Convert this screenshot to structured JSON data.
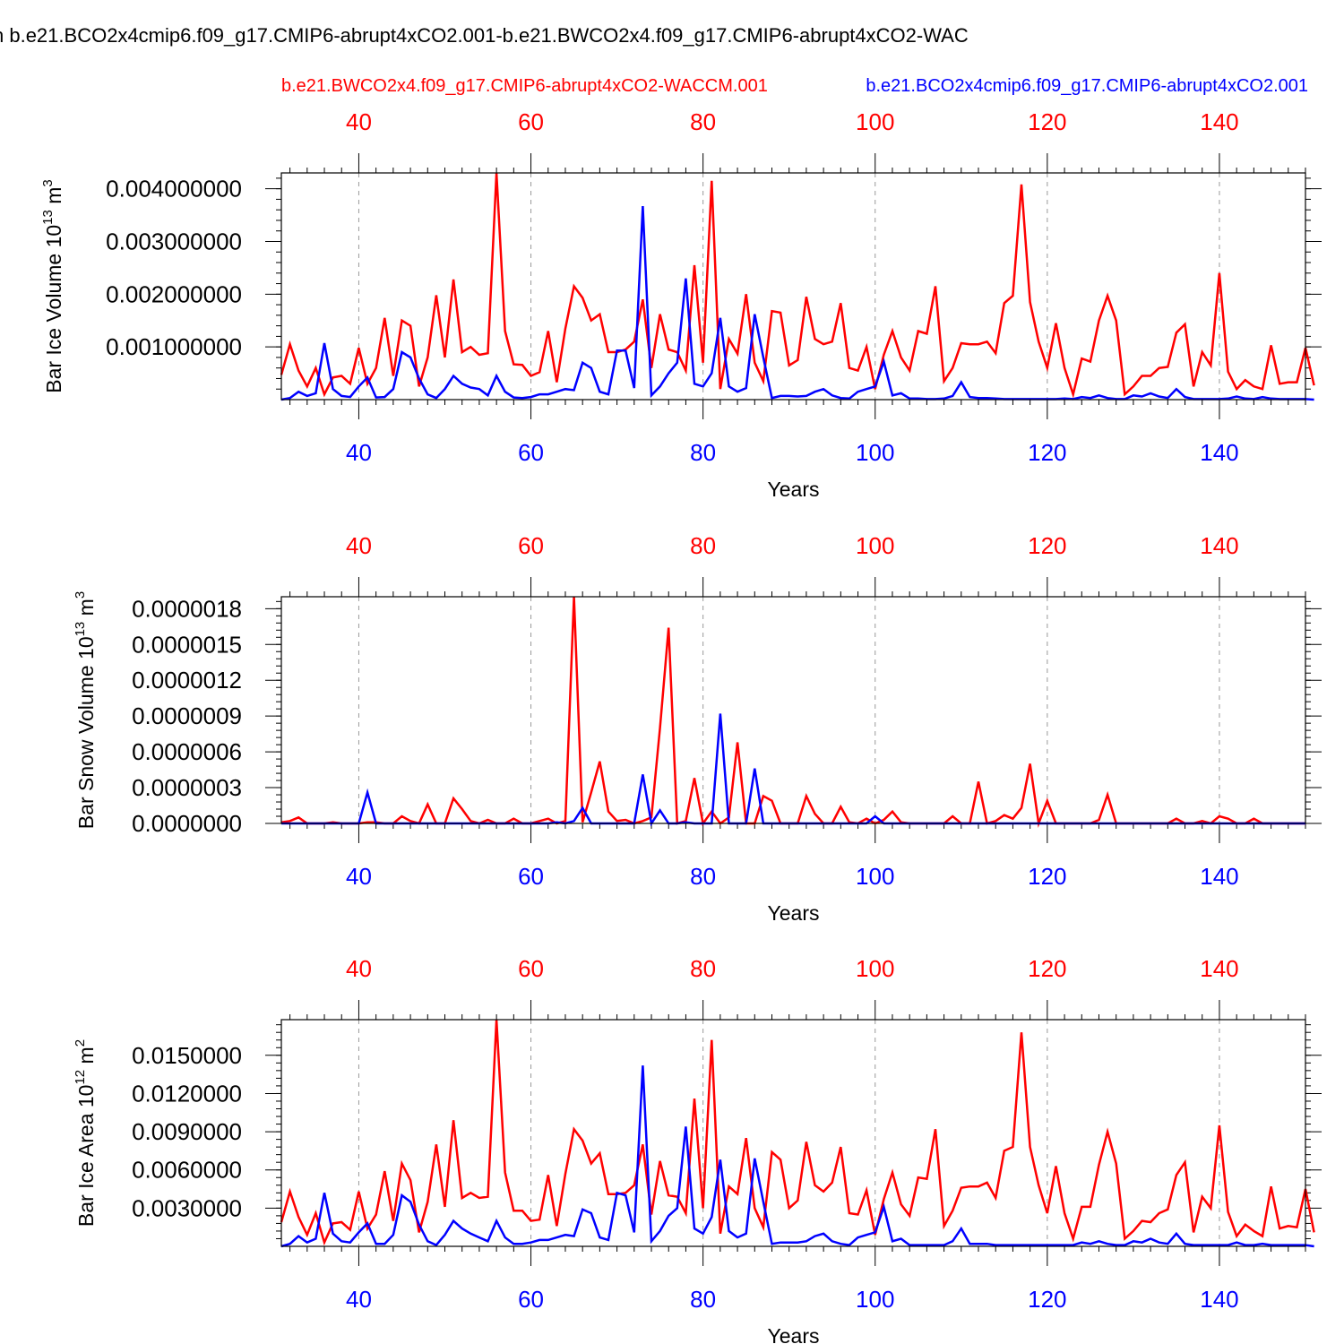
{
  "title": "n b.e21.BCO2x4cmip6.f09_g17.CMIP6-abrupt4xCO2.001-b.e21.BWCO2x4.f09_g17.CMIP6-abrupt4xCO2-WAC",
  "legend": {
    "red": "b.e21.BWCO2x4.f09_g17.CMIP6-abrupt4xCO2-WACCM.001",
    "blue": "b.e21.BCO2x4cmip6.f09_g17.CMIP6-abrupt4xCO2.001"
  },
  "colors": {
    "red": "#ff0000",
    "blue": "#0000ff",
    "axis": "#000000",
    "grid": "#999999"
  },
  "chart_data": [
    {
      "type": "line",
      "id": "ice-volume",
      "ylabel_main": "Bar Ice Volume 10",
      "ylabel_exp": "13",
      "ylabel_unit": " m",
      "ylabel_unit_exp": "3",
      "xlabel": "Years",
      "xlim": [
        31,
        150
      ],
      "ylim": [
        0,
        0.0043
      ],
      "xticks": [
        40,
        60,
        80,
        100,
        120,
        140
      ],
      "xtick_labels": [
        "40",
        "60",
        "80",
        "100",
        "120",
        "140"
      ],
      "yticks": [
        0.001,
        0.002,
        0.003,
        0.004
      ],
      "ytick_labels": [
        "0.001000000",
        "0.002000000",
        "0.003000000",
        "0.004000000"
      ],
      "x_start": 31,
      "series": [
        {
          "name": "b.e21.BWCO2x4.f09_g17.CMIP6-abrupt4xCO2-WACCM.001",
          "color": "red",
          "values": [
            0.00047,
            0.00105,
            0.00055,
            0.00025,
            0.0006,
            0.0001,
            0.00042,
            0.00045,
            0.0003,
            0.00098,
            0.0003,
            0.0006,
            0.00155,
            0.00045,
            0.0015,
            0.0014,
            0.00025,
            0.0008,
            0.00198,
            0.0008,
            0.00228,
            0.0009,
            0.001,
            0.00085,
            0.00088,
            0.0043,
            0.0013,
            0.00067,
            0.00066,
            0.00045,
            0.00052,
            0.0013,
            0.00033,
            0.00135,
            0.00215,
            0.00193,
            0.0015,
            0.00162,
            0.0009,
            0.0009,
            0.00095,
            0.0011,
            0.0019,
            0.0006,
            0.00162,
            0.00095,
            0.0009,
            0.00055,
            0.00255,
            0.0007,
            0.00415,
            0.0002,
            0.00115,
            0.00087,
            0.002,
            0.0007,
            0.00035,
            0.00168,
            0.00165,
            0.00065,
            0.00075,
            0.00195,
            0.00115,
            0.00105,
            0.0011,
            0.00183,
            0.0006,
            0.00055,
            0.001,
            0.0002,
            0.00085,
            0.0013,
            0.0008,
            0.00055,
            0.0013,
            0.00125,
            0.00215,
            0.00035,
            0.0006,
            0.00107,
            0.00105,
            0.00105,
            0.0011,
            0.00088,
            0.00183,
            0.00197,
            0.00408,
            0.00185,
            0.0011,
            0.0006,
            0.00145,
            0.0006,
            0.0001,
            0.00078,
            0.00072,
            0.0015,
            0.00197,
            0.0015,
            0.0001,
            0.00025,
            0.00045,
            0.00045,
            0.0006,
            0.00062,
            0.00127,
            0.00143,
            0.00025,
            0.0009,
            0.00065,
            0.0024,
            0.00053,
            0.0002,
            0.00037,
            0.00025,
            0.0002,
            0.00103,
            0.0003,
            0.00033,
            0.00033,
            0.00098,
            0.00027
          ]
        },
        {
          "name": "b.e21.BCO2x4cmip6.f09_g17.CMIP6-abrupt4xCO2.001",
          "color": "blue",
          "values": [
            0.0,
            3e-05,
            0.00015,
            7e-05,
            0.00012,
            0.00107,
            0.0002,
            7e-05,
            5e-05,
            0.00025,
            0.00042,
            4e-05,
            5e-05,
            0.0002,
            0.0009,
            0.0008,
            0.0004,
            0.0001,
            3e-05,
            0.0002,
            0.00045,
            0.0003,
            0.00023,
            0.0002,
            8e-05,
            0.00045,
            0.00015,
            4e-05,
            3e-05,
            5e-05,
            0.0001,
            0.0001,
            0.00015,
            0.0002,
            0.00018,
            0.0007,
            0.0006,
            0.00015,
            0.0001,
            0.00093,
            0.00093,
            0.00022,
            0.00367,
            8e-05,
            0.00025,
            0.0005,
            0.0007,
            0.0023,
            0.0003,
            0.00025,
            0.0005,
            0.00155,
            0.00025,
            0.00015,
            0.00022,
            0.00162,
            0.0008,
            3e-05,
            7e-05,
            7e-05,
            6e-05,
            7e-05,
            0.00015,
            0.0002,
            8e-05,
            3e-05,
            2e-05,
            0.00015,
            0.0002,
            0.00025,
            0.00072,
            8e-05,
            0.00012,
            2e-05,
            2e-05,
            1e-05,
            1e-05,
            2e-05,
            7e-05,
            0.00033,
            5e-05,
            3e-05,
            3e-05,
            2e-05,
            1e-05,
            1e-05,
            1e-05,
            1e-05,
            1e-05,
            1e-05,
            1e-05,
            2e-05,
            1e-05,
            5e-05,
            3e-05,
            8e-05,
            3e-05,
            1e-05,
            1e-05,
            8e-05,
            6e-05,
            0.00012,
            6e-05,
            3e-05,
            0.0002,
            5e-05,
            1e-05,
            1e-05,
            1e-05,
            1e-05,
            2e-05,
            6e-05,
            2e-05,
            1e-05,
            5e-05,
            2e-05,
            1e-05,
            1e-05,
            1e-05,
            1e-05,
            0.0
          ]
        }
      ]
    },
    {
      "type": "line",
      "id": "snow-volume",
      "ylabel_main": "Bar Snow Volume 10",
      "ylabel_exp": "13",
      "ylabel_unit": " m",
      "ylabel_unit_exp": "3",
      "xlabel": "Years",
      "xlim": [
        31,
        150
      ],
      "ylim": [
        0,
        1.9e-06
      ],
      "xticks": [
        40,
        60,
        80,
        100,
        120,
        140
      ],
      "xtick_labels": [
        "40",
        "60",
        "80",
        "100",
        "120",
        "140"
      ],
      "yticks": [
        0,
        3e-07,
        6e-07,
        9e-07,
        1.2e-06,
        1.5e-06,
        1.8e-06
      ],
      "ytick_labels": [
        "0.0000000",
        "0.0000003",
        "0.0000006",
        "0.0000009",
        "0.0000012",
        "0.0000015",
        "0.0000018"
      ],
      "x_start": 31,
      "series": [
        {
          "name": "b.e21.BWCO2x4.f09_g17.CMIP6-abrupt4xCO2-WACCM.001",
          "color": "red",
          "values": [
            1e-08,
            2e-08,
            5e-08,
            0.0,
            0.0,
            0.0,
            1e-08,
            0.0,
            0.0,
            0.0,
            1e-08,
            1e-08,
            0.0,
            0.0,
            6e-08,
            2e-08,
            0.0,
            1.6e-07,
            0.0,
            0.0,
            2.1e-07,
            1.2e-07,
            2e-08,
            0.0,
            3e-08,
            0.0,
            0.0,
            4e-08,
            0.0,
            0.0,
            2e-08,
            4e-08,
            0.0,
            2e-08,
            1.9e-06,
            1e-08,
            2.6e-07,
            5.2e-07,
            1e-07,
            2e-08,
            3e-08,
            0.0,
            2e-08,
            5e-08,
            8e-07,
            1.64e-06,
            0.0,
            2e-08,
            3.8e-07,
            0.0,
            1e-07,
            0.0,
            5e-08,
            6.8e-07,
            0.0,
            0.0,
            2.3e-07,
            1.9e-07,
            0.0,
            0.0,
            0.0,
            2.3e-07,
            8e-08,
            0.0,
            0.0,
            1.4e-07,
            1e-08,
            0.0,
            4e-08,
            0.0,
            3e-08,
            1e-07,
            1e-08,
            0.0,
            0.0,
            0.0,
            0.0,
            0.0,
            6e-08,
            0.0,
            0.0,
            3.5e-07,
            0.0,
            2e-08,
            7e-08,
            4e-08,
            1.3e-07,
            5e-07,
            0.0,
            1.9e-07,
            0.0,
            0.0,
            0.0,
            0.0,
            0.0,
            3e-08,
            2.4e-07,
            0.0,
            0.0,
            0.0,
            0.0,
            0.0,
            0.0,
            0.0,
            4e-08,
            0.0,
            0.0,
            2e-08,
            0.0,
            6e-08,
            4e-08,
            0.0,
            0.0,
            4e-08,
            0.0,
            0.0,
            0.0,
            0.0,
            0.0,
            0.0
          ]
        },
        {
          "name": "b.e21.BCO2x4cmip6.f09_g17.CMIP6-abrupt4xCO2.001",
          "color": "blue",
          "values": [
            0.0,
            0.0,
            0.0,
            0.0,
            0.0,
            0.0,
            0.0,
            0.0,
            0.0,
            0.0,
            2.6e-07,
            0.0,
            0.0,
            0.0,
            0.0,
            0.0,
            0.0,
            0.0,
            0.0,
            0.0,
            0.0,
            0.0,
            0.0,
            0.0,
            0.0,
            0.0,
            0.0,
            0.0,
            0.0,
            0.0,
            0.0,
            0.0,
            1e-08,
            0.0,
            2e-08,
            1.3e-07,
            0.0,
            0.0,
            0.0,
            0.0,
            0.0,
            0.0,
            4.1e-07,
            0.0,
            1.1e-07,
            0.0,
            0.0,
            1e-08,
            0.0,
            0.0,
            0.0,
            9.2e-07,
            0.0,
            0.0,
            0.0,
            4.6e-07,
            0.0,
            0.0,
            0.0,
            0.0,
            0.0,
            0.0,
            0.0,
            0.0,
            0.0,
            0.0,
            0.0,
            0.0,
            0.0,
            6e-08,
            0.0,
            0.0,
            0.0,
            0.0,
            0.0,
            0.0,
            0.0,
            0.0,
            0.0,
            0.0,
            0.0,
            0.0,
            0.0,
            0.0,
            0.0,
            0.0,
            0.0,
            0.0,
            0.0,
            0.0,
            0.0,
            0.0,
            0.0,
            0.0,
            0.0,
            0.0,
            0.0,
            0.0,
            0.0,
            0.0,
            0.0,
            0.0,
            0.0,
            0.0,
            0.0,
            0.0,
            0.0,
            0.0,
            0.0,
            0.0,
            0.0,
            0.0,
            0.0,
            0.0,
            0.0,
            0.0,
            0.0,
            0.0,
            0.0,
            0.0
          ]
        }
      ]
    },
    {
      "type": "line",
      "id": "ice-area",
      "ylabel_main": "Bar Ice Area 10",
      "ylabel_exp": "12",
      "ylabel_unit": " m",
      "ylabel_unit_exp": "2",
      "xlabel": "Years",
      "xlim": [
        31,
        150
      ],
      "ylim": [
        0,
        0.0178
      ],
      "xticks": [
        40,
        60,
        80,
        100,
        120,
        140
      ],
      "xtick_labels": [
        "40",
        "60",
        "80",
        "100",
        "120",
        "140"
      ],
      "yticks": [
        0.003,
        0.006,
        0.009,
        0.012,
        0.015
      ],
      "ytick_labels": [
        "0.0030000",
        "0.0060000",
        "0.0090000",
        "0.0120000",
        "0.0150000"
      ],
      "x_start": 31,
      "series": [
        {
          "name": "b.e21.BWCO2x4.f09_g17.CMIP6-abrupt4xCO2-WACCM.001",
          "color": "red",
          "values": [
            0.0019,
            0.0043,
            0.0023,
            0.0009,
            0.0026,
            0.0003,
            0.0018,
            0.0019,
            0.0013,
            0.0043,
            0.0014,
            0.0025,
            0.0059,
            0.002,
            0.0065,
            0.0052,
            0.0011,
            0.0035,
            0.008,
            0.0031,
            0.0099,
            0.0038,
            0.0042,
            0.0038,
            0.0039,
            0.0178,
            0.0058,
            0.0028,
            0.0028,
            0.002,
            0.0021,
            0.0056,
            0.0016,
            0.0057,
            0.0092,
            0.0083,
            0.0065,
            0.0073,
            0.0041,
            0.0041,
            0.0042,
            0.0048,
            0.008,
            0.0025,
            0.0067,
            0.004,
            0.0039,
            0.0026,
            0.0116,
            0.003,
            0.0162,
            0.001,
            0.0047,
            0.0041,
            0.0085,
            0.003,
            0.0015,
            0.0074,
            0.0068,
            0.003,
            0.0036,
            0.0082,
            0.0048,
            0.0043,
            0.005,
            0.0078,
            0.0026,
            0.0025,
            0.0044,
            0.0009,
            0.0037,
            0.0058,
            0.0033,
            0.0024,
            0.0054,
            0.0053,
            0.0092,
            0.0016,
            0.0028,
            0.0046,
            0.0047,
            0.0047,
            0.005,
            0.0038,
            0.0075,
            0.0078,
            0.0168,
            0.0078,
            0.0048,
            0.0026,
            0.0063,
            0.0026,
            0.0006,
            0.0031,
            0.0031,
            0.0064,
            0.009,
            0.0065,
            0.0006,
            0.0012,
            0.002,
            0.0019,
            0.0026,
            0.0029,
            0.0056,
            0.0066,
            0.0011,
            0.0039,
            0.003,
            0.0095,
            0.0027,
            0.0008,
            0.0017,
            0.0012,
            0.0008,
            0.0047,
            0.0014,
            0.0016,
            0.0015,
            0.0045,
            0.0011
          ]
        },
        {
          "name": "b.e21.BCO2x4cmip6.f09_g17.CMIP6-abrupt4xCO2.001",
          "color": "blue",
          "values": [
            0.0,
            0.0002,
            0.0008,
            0.0003,
            0.0006,
            0.0042,
            0.001,
            0.0004,
            0.0003,
            0.0011,
            0.0018,
            0.0002,
            0.0002,
            0.0009,
            0.004,
            0.0035,
            0.0017,
            0.0004,
            0.0001,
            0.0009,
            0.002,
            0.0014,
            0.001,
            0.0007,
            0.0004,
            0.002,
            0.0007,
            0.0002,
            0.0002,
            0.0003,
            0.0005,
            0.0005,
            0.0007,
            0.0009,
            0.0008,
            0.0029,
            0.0026,
            0.0007,
            0.0005,
            0.0042,
            0.004,
            0.0011,
            0.0142,
            0.0004,
            0.0012,
            0.0024,
            0.003,
            0.0094,
            0.0014,
            0.001,
            0.0023,
            0.0068,
            0.0012,
            0.0007,
            0.001,
            0.0069,
            0.0035,
            0.0002,
            0.0003,
            0.0003,
            0.0003,
            0.0004,
            0.0008,
            0.001,
            0.0004,
            0.0002,
            0.0001,
            0.0007,
            0.0009,
            0.0011,
            0.0031,
            0.0004,
            0.0006,
            0.0001,
            0.0001,
            0.0001,
            0.0001,
            0.0001,
            0.0004,
            0.0014,
            0.0002,
            0.0002,
            0.0002,
            0.0001,
            0.0001,
            0.0001,
            0.0001,
            0.0001,
            0.0001,
            0.0001,
            0.0001,
            0.0001,
            0.0001,
            0.0003,
            0.0002,
            0.0004,
            0.0002,
            0.0001,
            0.0001,
            0.0004,
            0.0003,
            0.0006,
            0.0003,
            0.0002,
            0.001,
            0.0002,
            0.0001,
            0.0001,
            0.0001,
            0.0001,
            0.0001,
            0.0003,
            0.0001,
            0.0001,
            0.0002,
            0.0001,
            0.0001,
            0.0001,
            0.0001,
            0.0001,
            0.0
          ]
        }
      ]
    }
  ]
}
